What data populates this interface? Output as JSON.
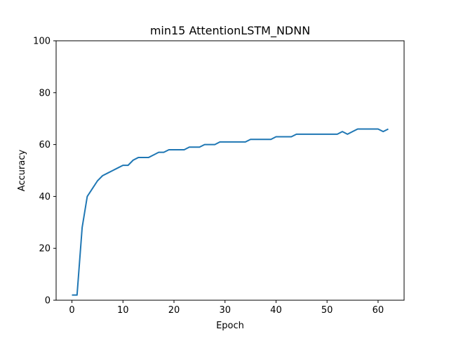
{
  "chart_data": {
    "type": "line",
    "title": "min15 AttentionLSTM_NDNN",
    "xlabel": "Epoch",
    "ylabel": "Accuracy",
    "xlim": [
      -3.1,
      65.1
    ],
    "ylim": [
      0,
      100
    ],
    "xticks": [
      0,
      10,
      20,
      30,
      40,
      50,
      60
    ],
    "yticks": [
      0,
      20,
      40,
      60,
      80,
      100
    ],
    "grid": false,
    "series": [
      {
        "name": "Accuracy",
        "color": "#1f77b4",
        "x": [
          0,
          1,
          2,
          3,
          4,
          5,
          6,
          7,
          8,
          9,
          10,
          11,
          12,
          13,
          14,
          15,
          16,
          17,
          18,
          19,
          20,
          21,
          22,
          23,
          24,
          25,
          26,
          27,
          28,
          29,
          30,
          31,
          32,
          33,
          34,
          35,
          36,
          37,
          38,
          39,
          40,
          41,
          42,
          43,
          44,
          45,
          46,
          47,
          48,
          49,
          50,
          51,
          52,
          53,
          54,
          55,
          56,
          57,
          58,
          59,
          60,
          61,
          62
        ],
        "y": [
          2,
          2,
          28,
          40,
          43,
          46,
          48,
          49,
          50,
          51,
          52,
          52,
          54,
          55,
          55,
          55,
          56,
          57,
          57,
          58,
          58,
          58,
          58,
          59,
          59,
          59,
          60,
          60,
          60,
          61,
          61,
          61,
          61,
          61,
          61,
          62,
          62,
          62,
          62,
          62,
          63,
          63,
          63,
          63,
          64,
          64,
          64,
          64,
          64,
          64,
          64,
          64,
          64,
          65,
          64,
          65,
          66,
          66,
          66,
          66,
          66,
          65,
          66
        ]
      }
    ]
  }
}
